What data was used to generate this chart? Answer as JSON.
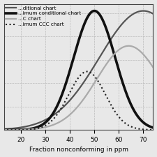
{
  "xlabel": "Fraction nonconforming in ppm",
  "xlim": [
    13,
    74
  ],
  "ylim": [
    0,
    1.08
  ],
  "xticks": [
    20,
    30,
    40,
    50,
    60,
    70
  ],
  "grid_color": "#bbbbbb",
  "background_color": "#e8e8e8",
  "curves": [
    {
      "label": "...ditional chart",
      "color": "#555555",
      "linewidth": 1.6,
      "linestyle": "solid",
      "mu": 70,
      "sigma": 18,
      "scale": 1.02
    },
    {
      "label": "...imum conditional chart",
      "color": "#111111",
      "linewidth": 2.6,
      "linestyle": "solid",
      "mu": 50,
      "sigma": 8.5,
      "scale": 1.02
    },
    {
      "label": "...C chart",
      "color": "#aaaaaa",
      "linewidth": 1.6,
      "linestyle": "solid",
      "mu": 64,
      "sigma": 13,
      "scale": 0.72
    },
    {
      "label": "...imum CCC chart",
      "color": "#222222",
      "linewidth": 1.5,
      "linestyle": "dotted",
      "mu": 47,
      "sigma": 7.5,
      "scale": 0.5
    }
  ],
  "legend_labels": [
    "...ditional chart",
    "...imum conditional chart",
    "...C chart",
    "...imum CCC chart"
  ],
  "legend_fontsize": 5.2,
  "legend_loc": "upper left"
}
